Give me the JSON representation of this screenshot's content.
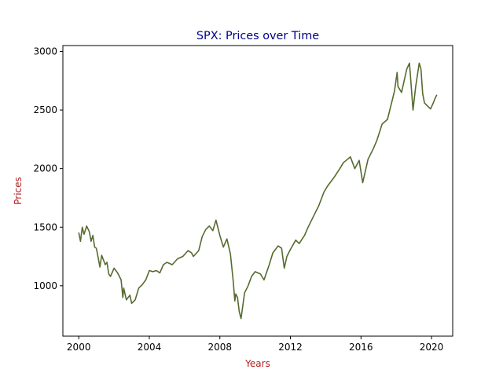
{
  "colors": {
    "title": "#00008b",
    "axis_label": "#b22222",
    "line": "#556b2f",
    "background": "#ffffff",
    "axes": "#000000"
  },
  "chart_data": {
    "type": "line",
    "title": "SPX: Prices over Time",
    "xlabel": "Years",
    "ylabel": "Prices",
    "xlim": [
      1999.1,
      2021.2
    ],
    "ylim": [
      570,
      3050
    ],
    "xticks": [
      2000,
      2004,
      2008,
      2012,
      2016,
      2020
    ],
    "xtick_labels": [
      "2000",
      "2004",
      "2008",
      "2012",
      "2016",
      "2020"
    ],
    "yticks": [
      1000,
      1500,
      2000,
      2500,
      3000
    ],
    "ytick_labels": [
      "1000",
      "1500",
      "2000",
      "2500",
      "3000"
    ],
    "grid": false,
    "legend": false,
    "series": [
      {
        "x": [
          2000.0,
          2000.1,
          2000.2,
          2000.3,
          2000.45,
          2000.6,
          2000.7,
          2000.8,
          2000.9,
          2001.0,
          2001.1,
          2001.2,
          2001.3,
          2001.5,
          2001.6,
          2001.7,
          2001.8,
          2002.0,
          2002.2,
          2002.4,
          2002.5,
          2002.55,
          2002.7,
          2002.8,
          2002.9,
          2003.0,
          2003.2,
          2003.4,
          2003.6,
          2003.8,
          2004.0,
          2004.2,
          2004.4,
          2004.6,
          2004.8,
          2005.0,
          2005.3,
          2005.6,
          2005.9,
          2006.2,
          2006.4,
          2006.5,
          2006.8,
          2007.0,
          2007.2,
          2007.4,
          2007.6,
          2007.78,
          2008.0,
          2008.2,
          2008.4,
          2008.6,
          2008.75,
          2008.85,
          2008.9,
          2009.0,
          2009.1,
          2009.2,
          2009.4,
          2009.6,
          2009.8,
          2010.0,
          2010.3,
          2010.5,
          2010.8,
          2011.0,
          2011.3,
          2011.5,
          2011.65,
          2011.8,
          2012.0,
          2012.3,
          2012.5,
          2012.8,
          2013.0,
          2013.4,
          2013.6,
          2013.9,
          2014.1,
          2014.5,
          2014.8,
          2015.0,
          2015.4,
          2015.65,
          2015.9,
          2016.1,
          2016.4,
          2016.7,
          2016.9,
          2017.2,
          2017.5,
          2017.9,
          2018.05,
          2018.1,
          2018.3,
          2018.6,
          2018.75,
          2018.95,
          2019.1,
          2019.3,
          2019.4,
          2019.5,
          2019.6,
          2019.8,
          2019.95,
          2020.1,
          2020.2,
          2020.3
        ],
        "y": [
          1455,
          1380,
          1500,
          1440,
          1510,
          1460,
          1380,
          1430,
          1330,
          1320,
          1240,
          1160,
          1260,
          1180,
          1200,
          1100,
          1080,
          1150,
          1110,
          1050,
          900,
          980,
          880,
          900,
          920,
          850,
          880,
          980,
          1010,
          1050,
          1130,
          1120,
          1130,
          1110,
          1180,
          1200,
          1180,
          1230,
          1250,
          1300,
          1280,
          1250,
          1300,
          1420,
          1480,
          1510,
          1470,
          1560,
          1430,
          1330,
          1400,
          1270,
          1050,
          870,
          930,
          900,
          780,
          720,
          940,
          1000,
          1080,
          1120,
          1100,
          1050,
          1180,
          1280,
          1340,
          1320,
          1150,
          1250,
          1310,
          1390,
          1360,
          1430,
          1500,
          1620,
          1680,
          1800,
          1850,
          1930,
          2000,
          2050,
          2100,
          2000,
          2070,
          1880,
          2080,
          2170,
          2240,
          2380,
          2420,
          2660,
          2820,
          2700,
          2650,
          2850,
          2900,
          2500,
          2700,
          2900,
          2850,
          2640,
          2560,
          2530,
          2510,
          2560,
          2600,
          2630
        ]
      }
    ]
  }
}
